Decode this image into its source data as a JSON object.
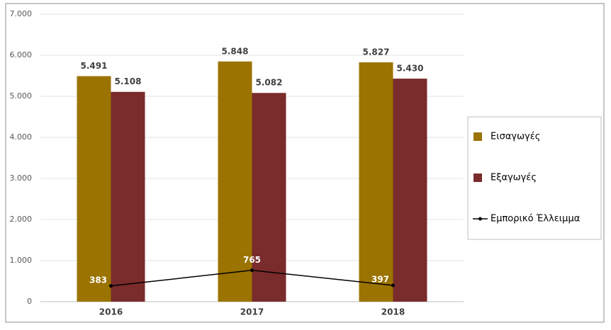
{
  "chart_data": {
    "type": "bar-line",
    "categories": [
      "2016",
      "2017",
      "2018"
    ],
    "series": [
      {
        "name": "Εισαγωγές",
        "type": "bar",
        "color": "#9b7300",
        "values": [
          5491,
          5848,
          5827
        ],
        "value_labels": [
          "5.491",
          "5.848",
          "5.827"
        ]
      },
      {
        "name": "Εξαγωγές",
        "type": "bar",
        "color": "#7a2b2b",
        "values": [
          5108,
          5082,
          5430
        ],
        "value_labels": [
          "5.108",
          "5.082",
          "5.430"
        ]
      },
      {
        "name": "Εμπορικό Έλλειμμα",
        "type": "line",
        "color": "#000000",
        "values": [
          383,
          765,
          397
        ]
      }
    ],
    "ylim": [
      0,
      7000
    ],
    "yticks": [
      {
        "value": 0,
        "label": "0"
      },
      {
        "value": 1000,
        "label": "1.000"
      },
      {
        "value": 2000,
        "label": "2.000"
      },
      {
        "value": 3000,
        "label": "3.000"
      },
      {
        "value": 4000,
        "label": "4.000"
      },
      {
        "value": 5000,
        "label": "5.000"
      },
      {
        "value": 6000,
        "label": "6.000"
      },
      {
        "value": 7000,
        "label": "7.000"
      }
    ],
    "grid": true
  }
}
